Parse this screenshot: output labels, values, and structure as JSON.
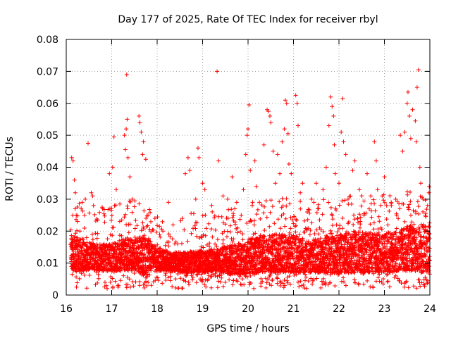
{
  "chart_data": {
    "type": "scatter",
    "title": "Day 177 of 2025, Rate Of TEC Index for receiver rbyl",
    "xlabel": "GPS time / hours",
    "ylabel": "ROTI / TECUs",
    "xlim": [
      16,
      24
    ],
    "ylim": [
      0,
      0.08
    ],
    "xticks": [
      16,
      17,
      18,
      19,
      20,
      21,
      22,
      23,
      24
    ],
    "yticks": [
      0,
      0.01,
      0.02,
      0.03,
      0.04,
      0.05,
      0.06,
      0.07,
      0.08
    ],
    "xtick_labels": [
      "16",
      "17",
      "18",
      "19",
      "20",
      "21",
      "22",
      "23",
      "24"
    ],
    "ytick_labels": [
      "0",
      "0.01",
      "0.02",
      "0.03",
      "0.04",
      "0.05",
      "0.06",
      "0.07",
      "0.08"
    ],
    "grid": true,
    "marker": "+",
    "color": "#ff0000",
    "series": [
      {
        "name": "ROTI",
        "points": [
          [
            16.12,
            0.043
          ],
          [
            16.15,
            0.042
          ],
          [
            16.18,
            0.036
          ],
          [
            16.2,
            0.032
          ],
          [
            16.22,
            0.025
          ],
          [
            16.25,
            0.023
          ],
          [
            16.3,
            0.02
          ],
          [
            16.35,
            0.029
          ],
          [
            16.42,
            0.03
          ],
          [
            16.55,
            0.032
          ],
          [
            16.58,
            0.031
          ],
          [
            16.6,
            0.028
          ],
          [
            16.48,
            0.0475
          ],
          [
            16.8,
            0.027
          ],
          [
            16.95,
            0.038
          ],
          [
            17.02,
            0.04
          ],
          [
            17.05,
            0.0495
          ],
          [
            17.1,
            0.033
          ],
          [
            17.18,
            0.0285
          ],
          [
            17.22,
            0.0235
          ],
          [
            17.28,
            0.05
          ],
          [
            17.3,
            0.0455
          ],
          [
            17.32,
            0.052
          ],
          [
            17.34,
            0.055
          ],
          [
            17.36,
            0.043
          ],
          [
            17.33,
            0.069
          ],
          [
            17.4,
            0.037
          ],
          [
            17.45,
            0.03
          ],
          [
            17.6,
            0.056
          ],
          [
            17.62,
            0.054
          ],
          [
            17.65,
            0.051
          ],
          [
            17.68,
            0.044
          ],
          [
            17.7,
            0.048
          ],
          [
            17.75,
            0.0425
          ],
          [
            17.8,
            0.025
          ],
          [
            17.95,
            0.024
          ],
          [
            18.05,
            0.0215
          ],
          [
            18.25,
            0.029
          ],
          [
            18.35,
            0.022
          ],
          [
            18.55,
            0.024
          ],
          [
            18.62,
            0.038
          ],
          [
            18.68,
            0.043
          ],
          [
            18.72,
            0.039
          ],
          [
            18.85,
            0.03
          ],
          [
            18.9,
            0.046
          ],
          [
            18.92,
            0.043
          ],
          [
            19.0,
            0.035
          ],
          [
            19.05,
            0.033
          ],
          [
            19.2,
            0.028
          ],
          [
            19.32,
            0.07
          ],
          [
            19.35,
            0.042
          ],
          [
            19.45,
            0.031
          ],
          [
            19.55,
            0.03
          ],
          [
            19.65,
            0.037
          ],
          [
            19.75,
            0.029
          ],
          [
            19.85,
            0.025
          ],
          [
            19.9,
            0.033
          ],
          [
            19.95,
            0.044
          ],
          [
            19.98,
            0.05
          ],
          [
            20.0,
            0.052
          ],
          [
            20.02,
            0.0595
          ],
          [
            20.05,
            0.039
          ],
          [
            20.1,
            0.029
          ],
          [
            20.15,
            0.042
          ],
          [
            20.18,
            0.034
          ],
          [
            20.25,
            0.029
          ],
          [
            20.35,
            0.047
          ],
          [
            20.42,
            0.058
          ],
          [
            20.45,
            0.0575
          ],
          [
            20.48,
            0.056
          ],
          [
            20.5,
            0.054
          ],
          [
            20.55,
            0.045
          ],
          [
            20.6,
            0.035
          ],
          [
            20.65,
            0.044
          ],
          [
            20.7,
            0.038
          ],
          [
            20.75,
            0.048
          ],
          [
            20.8,
            0.052
          ],
          [
            20.82,
            0.061
          ],
          [
            20.85,
            0.06
          ],
          [
            20.88,
            0.0505
          ],
          [
            20.9,
            0.041
          ],
          [
            20.95,
            0.038
          ],
          [
            21.05,
            0.0625
          ],
          [
            21.08,
            0.06
          ],
          [
            21.1,
            0.053
          ],
          [
            21.15,
            0.032
          ],
          [
            21.2,
            0.035
          ],
          [
            21.3,
            0.026
          ],
          [
            21.4,
            0.03
          ],
          [
            21.45,
            0.029
          ],
          [
            21.5,
            0.035
          ],
          [
            21.55,
            0.027
          ],
          [
            21.65,
            0.033
          ],
          [
            21.72,
            0.04
          ],
          [
            21.78,
            0.053
          ],
          [
            21.82,
            0.062
          ],
          [
            21.85,
            0.059
          ],
          [
            21.88,
            0.056
          ],
          [
            21.9,
            0.047
          ],
          [
            21.92,
            0.038
          ],
          [
            22.0,
            0.035
          ],
          [
            22.05,
            0.051
          ],
          [
            22.08,
            0.0615
          ],
          [
            22.1,
            0.048
          ],
          [
            22.15,
            0.044
          ],
          [
            22.2,
            0.03
          ],
          [
            22.3,
            0.039
          ],
          [
            22.35,
            0.042
          ],
          [
            22.45,
            0.033
          ],
          [
            22.55,
            0.025
          ],
          [
            22.62,
            0.038
          ],
          [
            22.7,
            0.031
          ],
          [
            22.78,
            0.048
          ],
          [
            22.82,
            0.042
          ],
          [
            22.85,
            0.033
          ],
          [
            22.95,
            0.031
          ],
          [
            23.0,
            0.037
          ],
          [
            23.05,
            0.028
          ],
          [
            23.15,
            0.029
          ],
          [
            23.25,
            0.03
          ],
          [
            23.35,
            0.05
          ],
          [
            23.4,
            0.045
          ],
          [
            23.45,
            0.051
          ],
          [
            23.5,
            0.06
          ],
          [
            23.52,
            0.0635
          ],
          [
            23.55,
            0.056
          ],
          [
            23.58,
            0.049
          ],
          [
            23.62,
            0.058
          ],
          [
            23.68,
            0.0545
          ],
          [
            23.7,
            0.048
          ],
          [
            23.72,
            0.065
          ],
          [
            23.75,
            0.0705
          ],
          [
            23.78,
            0.04
          ],
          [
            23.8,
            0.035
          ],
          [
            23.85,
            0.03
          ],
          [
            23.9,
            0.025
          ],
          [
            23.95,
            0.028
          ],
          [
            23.98,
            0.032
          ]
        ],
        "band": [
          [
            16.1,
            0.008,
            0.019
          ],
          [
            16.3,
            0.007,
            0.0175
          ],
          [
            16.5,
            0.008,
            0.0165
          ],
          [
            16.7,
            0.0075,
            0.016
          ],
          [
            17.0,
            0.0075,
            0.016
          ],
          [
            17.3,
            0.0075,
            0.018
          ],
          [
            17.5,
            0.008,
            0.0175
          ],
          [
            17.7,
            0.006,
            0.019
          ],
          [
            18.0,
            0.0075,
            0.015
          ],
          [
            18.3,
            0.0075,
            0.0135
          ],
          [
            18.6,
            0.007,
            0.0135
          ],
          [
            19.0,
            0.007,
            0.014
          ],
          [
            19.3,
            0.0075,
            0.0145
          ],
          [
            19.6,
            0.0065,
            0.0155
          ],
          [
            20.0,
            0.0065,
            0.0175
          ],
          [
            20.3,
            0.007,
            0.0185
          ],
          [
            20.6,
            0.007,
            0.019
          ],
          [
            21.0,
            0.007,
            0.019
          ],
          [
            21.3,
            0.007,
            0.017
          ],
          [
            21.6,
            0.007,
            0.018
          ],
          [
            22.0,
            0.0065,
            0.019
          ],
          [
            22.3,
            0.007,
            0.02
          ],
          [
            22.6,
            0.007,
            0.0195
          ],
          [
            23.0,
            0.007,
            0.0195
          ],
          [
            23.3,
            0.0075,
            0.02
          ],
          [
            23.6,
            0.0075,
            0.022
          ],
          [
            24.0,
            0.007,
            0.022
          ]
        ]
      }
    ]
  }
}
